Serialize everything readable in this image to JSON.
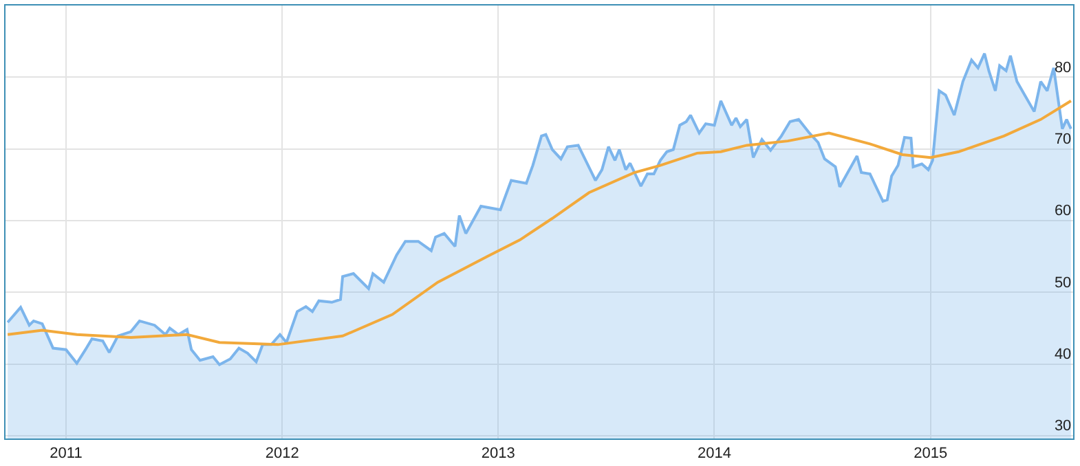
{
  "chart_data": {
    "type": "area",
    "xlim": [
      2010.72,
      2015.66
    ],
    "xticks": [
      2011,
      2012,
      2013,
      2014,
      2015
    ],
    "ylim": [
      29.6,
      90
    ],
    "yticks": [
      30,
      40,
      50,
      60,
      70,
      80
    ],
    "grid": true,
    "series": [
      {
        "color": "#7cb5ec",
        "x": [
          2010.73,
          2010.79,
          2010.83,
          2010.85,
          2010.89,
          2010.94,
          2011.0,
          2011.05,
          2011.09,
          2011.12,
          2011.17,
          2011.2,
          2011.24,
          2011.3,
          2011.34,
          2011.41,
          2011.46,
          2011.48,
          2011.52,
          2011.56,
          2011.58,
          2011.62,
          2011.68,
          2011.71,
          2011.76,
          2011.8,
          2011.84,
          2011.88,
          2011.91,
          2011.95,
          2011.99,
          2012.02,
          2012.07,
          2012.11,
          2012.14,
          2012.17,
          2012.23,
          2012.27,
          2012.28,
          2012.33,
          2012.4,
          2012.42,
          2012.47,
          2012.53,
          2012.57,
          2012.63,
          2012.69,
          2012.71,
          2012.75,
          2012.8,
          2012.82,
          2012.85,
          2012.92,
          2013.01,
          2013.06,
          2013.13,
          2013.16,
          2013.2,
          2013.22,
          2013.25,
          2013.29,
          2013.32,
          2013.37,
          2013.45,
          2013.48,
          2013.51,
          2013.54,
          2013.56,
          2013.59,
          2013.61,
          2013.66,
          2013.69,
          2013.72,
          2013.75,
          2013.78,
          2013.81,
          2013.84,
          2013.87,
          2013.89,
          2013.93,
          2013.96,
          2014.0,
          2014.03,
          2014.08,
          2014.1,
          2014.12,
          2014.15,
          2014.18,
          2014.22,
          2014.26,
          2014.31,
          2014.35,
          2014.39,
          2014.44,
          2014.48,
          2014.51,
          2014.56,
          2014.58,
          2014.66,
          2014.68,
          2014.72,
          2014.78,
          2014.8,
          2014.82,
          2014.85,
          2014.88,
          2014.91,
          2014.92,
          2014.96,
          2014.99,
          2015.01,
          2015.04,
          2015.07,
          2015.11,
          2015.15,
          2015.19,
          2015.22,
          2015.25,
          2015.27,
          2015.3,
          2015.32,
          2015.35,
          2015.37,
          2015.4,
          2015.44,
          2015.48,
          2015.51,
          2015.54,
          2015.57,
          2015.61,
          2015.63,
          2015.65
        ],
        "values": [
          45.8,
          47.9,
          45.4,
          46.0,
          45.6,
          42.2,
          42.0,
          40.1,
          42.0,
          43.5,
          43.2,
          41.6,
          43.9,
          44.5,
          46.0,
          45.4,
          44.1,
          45.0,
          44.1,
          44.8,
          42.0,
          40.5,
          41.0,
          39.9,
          40.7,
          42.2,
          41.5,
          40.3,
          42.7,
          42.7,
          44.1,
          43.0,
          47.3,
          48.0,
          47.3,
          48.8,
          48.6,
          49.0,
          52.2,
          52.6,
          50.5,
          52.6,
          51.4,
          55.2,
          57.1,
          57.1,
          55.8,
          57.7,
          58.2,
          56.4,
          60.7,
          58.2,
          62.0,
          61.5,
          65.6,
          65.2,
          67.7,
          71.8,
          72.0,
          69.9,
          68.6,
          70.3,
          70.5,
          65.6,
          67.1,
          70.3,
          68.4,
          69.9,
          67.1,
          68.0,
          64.8,
          66.5,
          66.5,
          68.4,
          69.6,
          69.9,
          73.3,
          73.8,
          74.7,
          72.2,
          73.5,
          73.3,
          76.7,
          73.3,
          74.3,
          73.1,
          74.1,
          68.8,
          71.3,
          69.8,
          71.8,
          73.8,
          74.1,
          72.2,
          70.9,
          68.6,
          67.5,
          64.7,
          69.0,
          66.7,
          66.5,
          62.7,
          62.9,
          66.2,
          67.7,
          71.6,
          71.5,
          67.5,
          67.9,
          67.1,
          68.4,
          78.1,
          77.5,
          74.7,
          79.4,
          82.4,
          81.3,
          83.3,
          80.9,
          78.1,
          81.6,
          80.9,
          83.0,
          79.4,
          77.3,
          75.2,
          79.4,
          78.1,
          81.3,
          72.8,
          74.1,
          72.8
        ]
      },
      {
        "type": "line",
        "color": "#f2a93b",
        "x": [
          2010.73,
          2010.89,
          2011.05,
          2011.3,
          2011.56,
          2011.71,
          2011.98,
          2012.28,
          2012.51,
          2012.72,
          2012.95,
          2013.1,
          2013.25,
          2013.33,
          2013.42,
          2013.63,
          2013.75,
          2013.92,
          2014.03,
          2014.15,
          2014.34,
          2014.53,
          2014.72,
          2014.87,
          2015.0,
          2015.13,
          2015.34,
          2015.51,
          2015.65
        ],
        "values": [
          44.1,
          44.7,
          44.1,
          43.7,
          44.1,
          43.0,
          42.7,
          43.9,
          46.9,
          51.4,
          55.0,
          57.3,
          60.3,
          62.0,
          63.9,
          66.7,
          67.7,
          69.4,
          69.6,
          70.5,
          71.1,
          72.2,
          70.7,
          69.2,
          68.8,
          69.6,
          71.8,
          74.1,
          76.7
        ]
      }
    ]
  }
}
